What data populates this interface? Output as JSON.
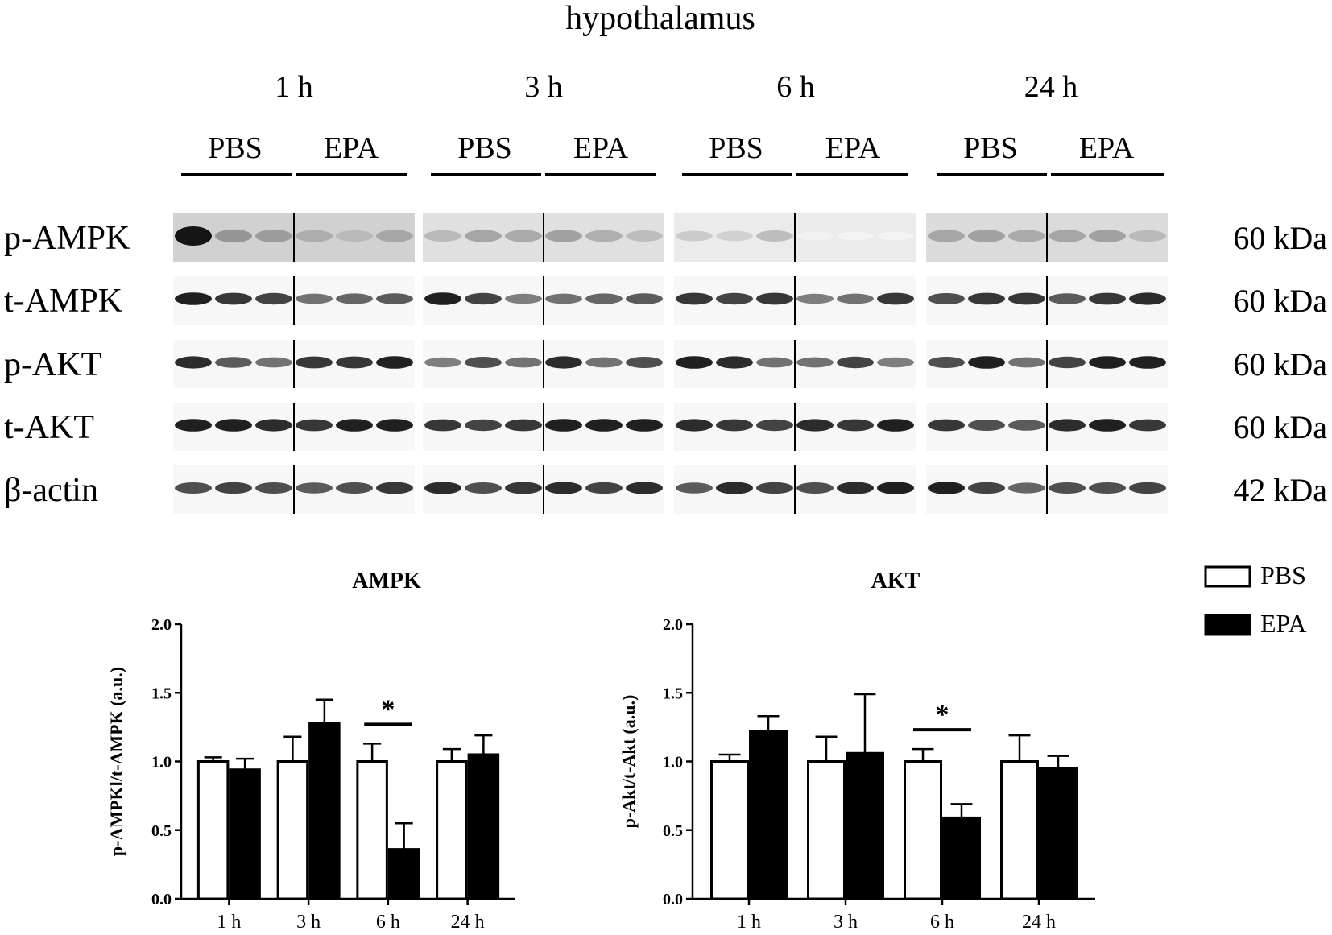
{
  "figure_title": "hypothalamus",
  "timepoints": [
    "1 h",
    "3 h",
    "6 h",
    "24 h"
  ],
  "groups": [
    "PBS",
    "EPA"
  ],
  "blot_rows": [
    {
      "protein": "p-AMPK",
      "size": "60 kDa"
    },
    {
      "protein": "t-AMPK",
      "size": "60 kDa"
    },
    {
      "protein": "p-AKT",
      "size": "60 kDa"
    },
    {
      "protein": "t-AKT",
      "size": "60 kDa"
    },
    {
      "protein": "β-actin",
      "size": "42 kDa"
    }
  ],
  "legend": [
    {
      "name": "PBS",
      "color": "#ffffff"
    },
    {
      "name": "EPA",
      "color": "#000000"
    }
  ],
  "chart_data": [
    {
      "type": "bar",
      "title": "AMPK",
      "ylabel": "p-AMPKl/t-AMPK (a.u.)",
      "xlabel": "",
      "categories": [
        "1 h",
        "3 h",
        "6 h",
        "24 h"
      ],
      "ylim": [
        0,
        2.0
      ],
      "yticks": [
        "0.0",
        "0.5",
        "1.0",
        "1.5",
        "2.0"
      ],
      "series": [
        {
          "name": "PBS",
          "color": "#ffffff",
          "values": [
            1.0,
            1.0,
            1.0,
            1.0
          ],
          "errors": [
            0.03,
            0.18,
            0.13,
            0.09
          ]
        },
        {
          "name": "EPA",
          "color": "#000000",
          "values": [
            0.94,
            1.28,
            0.36,
            1.05
          ],
          "errors": [
            0.08,
            0.17,
            0.19,
            0.14
          ]
        }
      ],
      "significance": [
        {
          "category": "6 h",
          "label": "*"
        }
      ]
    },
    {
      "type": "bar",
      "title": "AKT",
      "ylabel": "p-Akt/t-Akt (a.u.)",
      "xlabel": "",
      "categories": [
        "1 h",
        "3 h",
        "6 h",
        "24 h"
      ],
      "ylim": [
        0,
        2.0
      ],
      "yticks": [
        "0.0",
        "0.5",
        "1.0",
        "1.5",
        "2.0"
      ],
      "series": [
        {
          "name": "PBS",
          "color": "#ffffff",
          "values": [
            1.0,
            1.0,
            1.0,
            1.0
          ],
          "errors": [
            0.05,
            0.18,
            0.09,
            0.19
          ]
        },
        {
          "name": "EPA",
          "color": "#000000",
          "values": [
            1.22,
            1.06,
            0.59,
            0.95
          ],
          "errors": [
            0.11,
            0.43,
            0.1,
            0.09
          ]
        }
      ],
      "significance": [
        {
          "category": "6 h",
          "label": "*"
        }
      ]
    }
  ]
}
